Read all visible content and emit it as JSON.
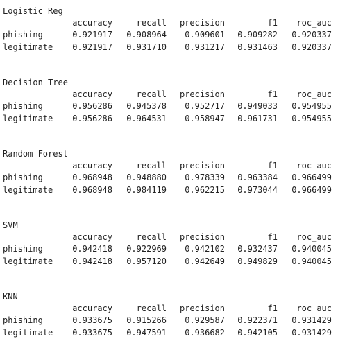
{
  "columns": [
    "accuracy",
    "recall",
    "precision",
    "f1",
    "roc_auc"
  ],
  "models": [
    {
      "name": "Logistic Reg",
      "rows": [
        {
          "label": "phishing",
          "values": [
            "0.921917",
            "0.908964",
            "0.909601",
            "0.909282",
            "0.920337"
          ]
        },
        {
          "label": "legitimate",
          "values": [
            "0.921917",
            "0.931710",
            "0.931217",
            "0.931463",
            "0.920337"
          ]
        }
      ]
    },
    {
      "name": "Decision Tree",
      "rows": [
        {
          "label": "phishing",
          "values": [
            "0.956286",
            "0.945378",
            "0.952717",
            "0.949033",
            "0.954955"
          ]
        },
        {
          "label": "legitimate",
          "values": [
            "0.956286",
            "0.964531",
            "0.958947",
            "0.961731",
            "0.954955"
          ]
        }
      ]
    },
    {
      "name": "Random Forest",
      "rows": [
        {
          "label": "phishing",
          "values": [
            "0.968948",
            "0.948880",
            "0.978339",
            "0.963384",
            "0.966499"
          ]
        },
        {
          "label": "legitimate",
          "values": [
            "0.968948",
            "0.984119",
            "0.962215",
            "0.973044",
            "0.966499"
          ]
        }
      ]
    },
    {
      "name": "SVM",
      "rows": [
        {
          "label": "phishing",
          "values": [
            "0.942418",
            "0.922969",
            "0.942102",
            "0.932437",
            "0.940045"
          ]
        },
        {
          "label": "legitimate",
          "values": [
            "0.942418",
            "0.957120",
            "0.942649",
            "0.949829",
            "0.940045"
          ]
        }
      ]
    },
    {
      "name": "KNN",
      "rows": [
        {
          "label": "phishing",
          "values": [
            "0.933675",
            "0.915266",
            "0.929587",
            "0.922371",
            "0.931429"
          ]
        },
        {
          "label": "legitimate",
          "values": [
            "0.933675",
            "0.947591",
            "0.936682",
            "0.942105",
            "0.931429"
          ]
        }
      ]
    }
  ]
}
